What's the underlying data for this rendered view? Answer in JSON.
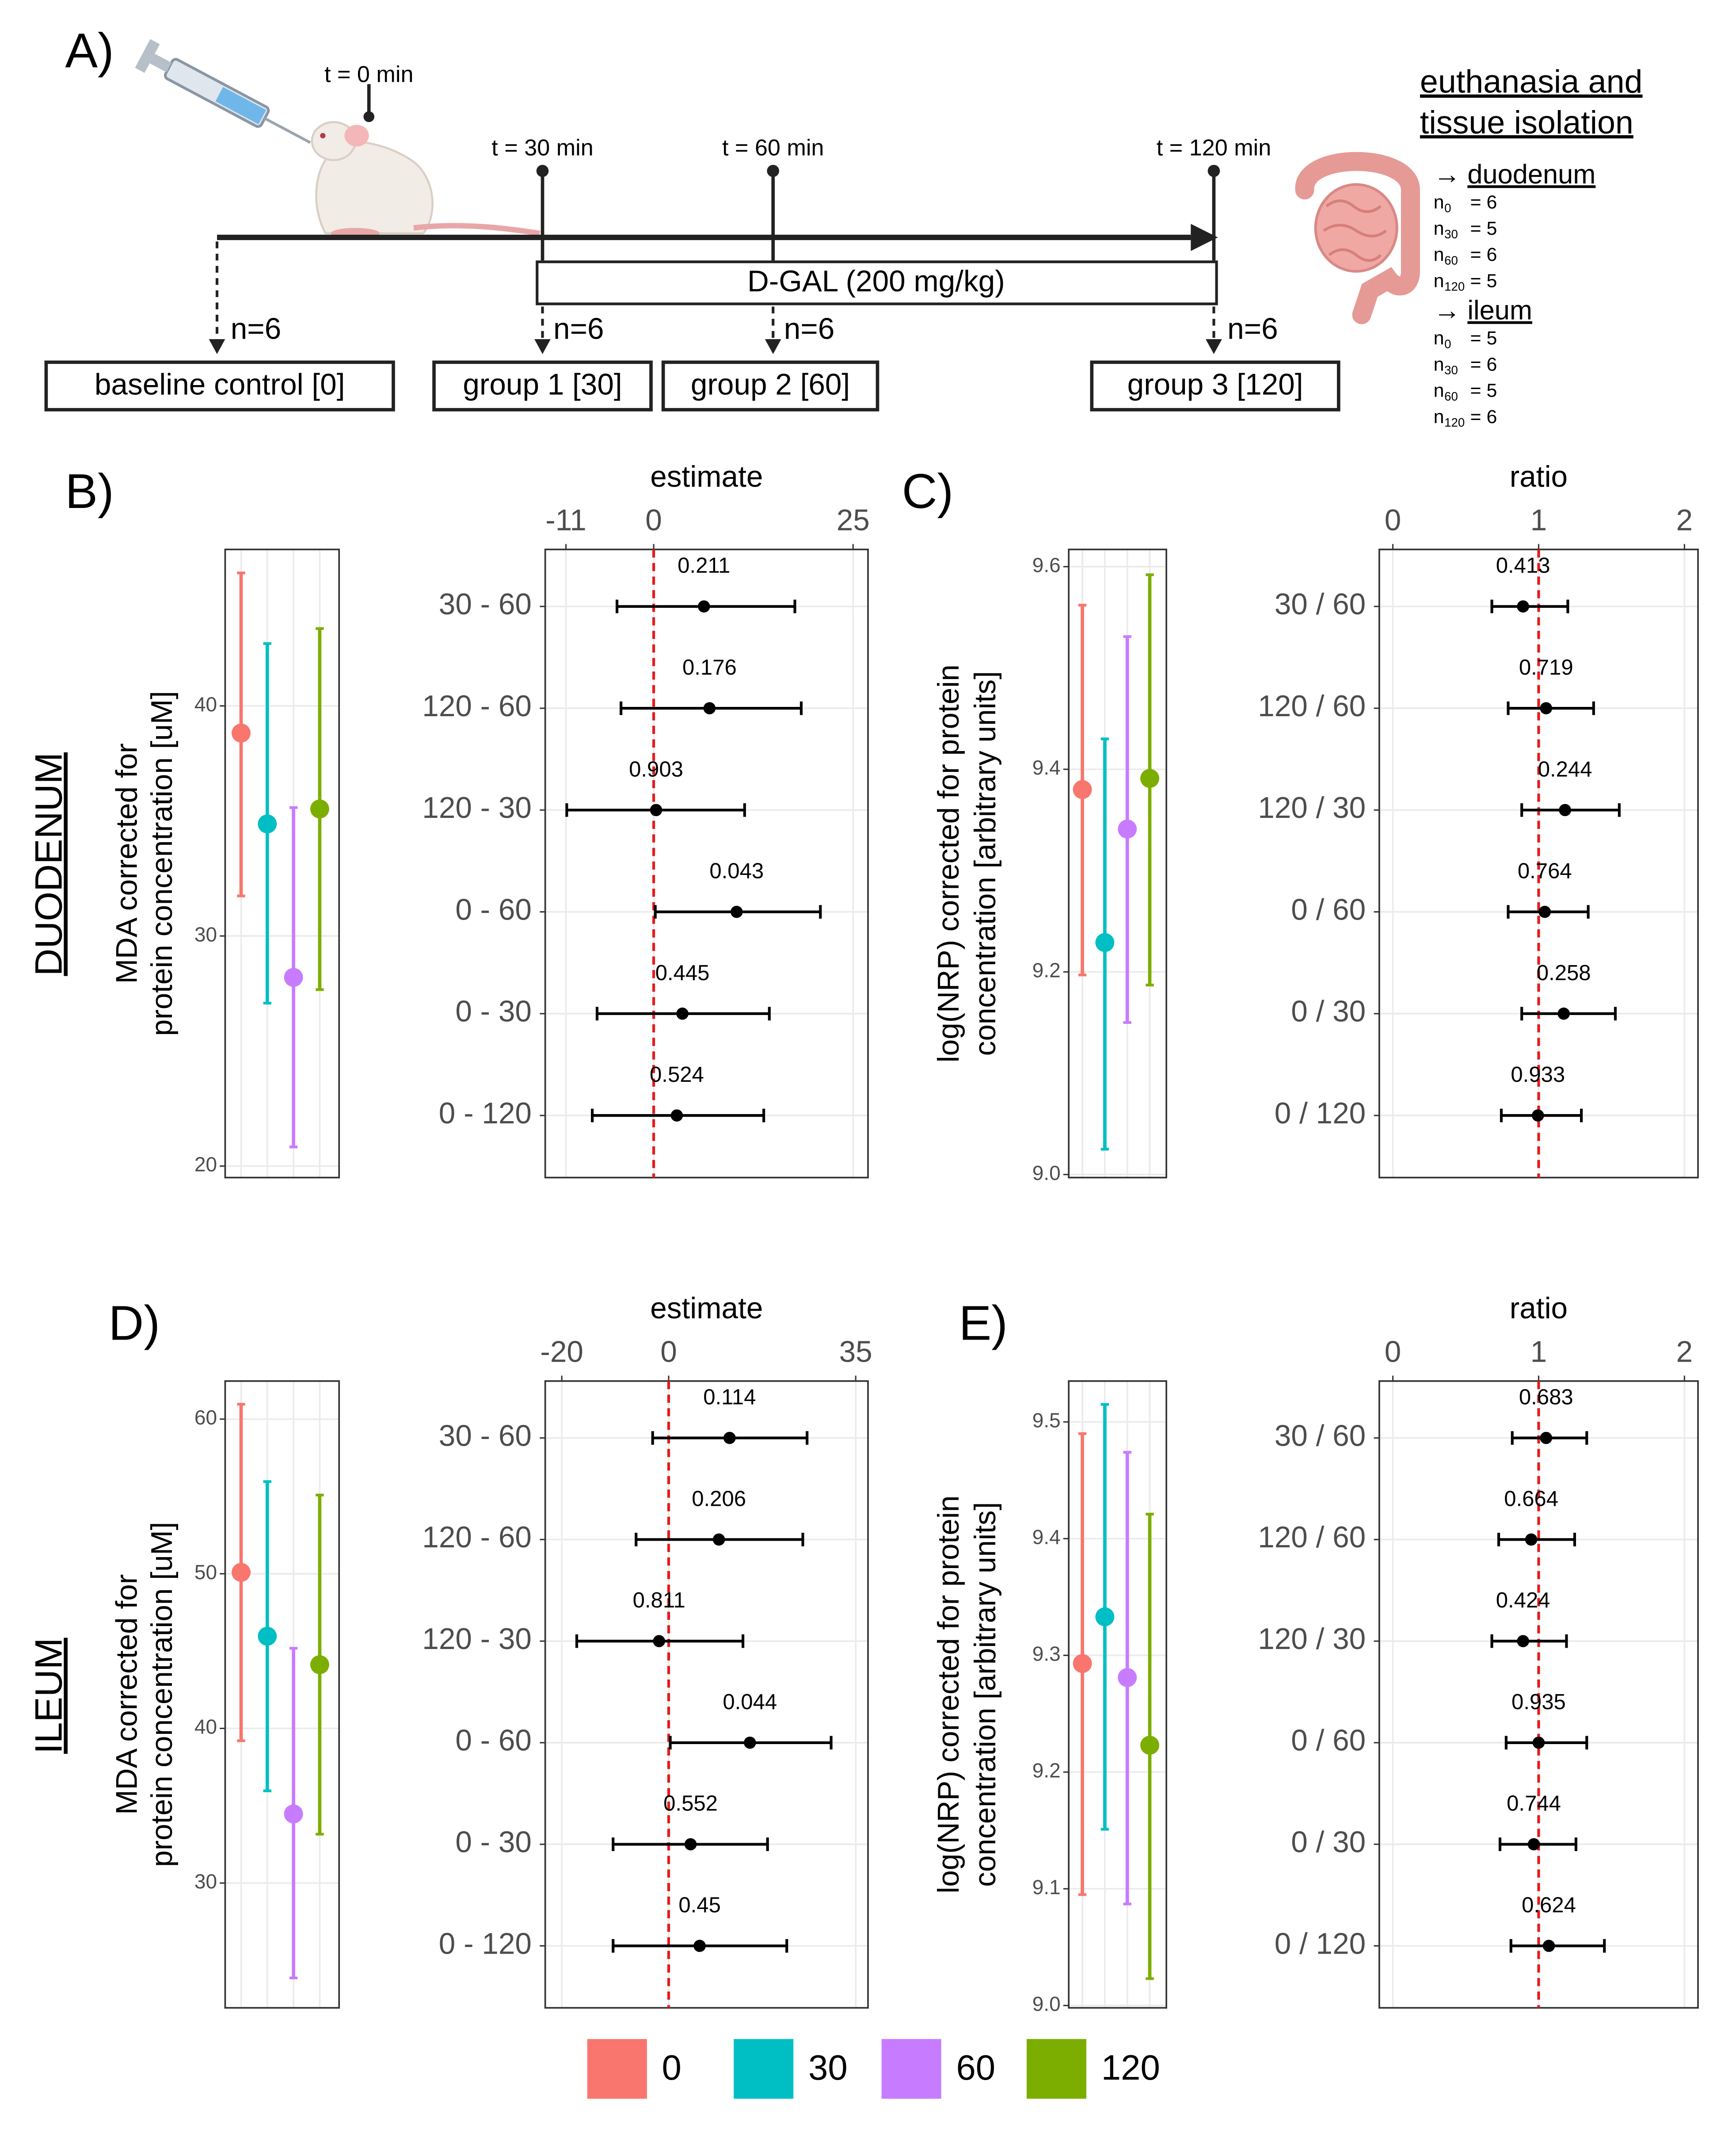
{
  "panel_labels": {
    "a": "A)",
    "b": "B)",
    "c": "C)",
    "d": "D)",
    "e": "E)"
  },
  "timeline": {
    "times": [
      "t = 0 min",
      "t = 30 min",
      "t = 60 min",
      "t = 120 min"
    ],
    "treatment": "D-GAL (200 mg/kg)",
    "group_n": [
      "n=6",
      "n=6",
      "n=6",
      "n=6"
    ],
    "groups": [
      "baseline control [0]",
      "group 1 [30]",
      "group 2 [60]",
      "group 3 [120]"
    ]
  },
  "tissue": {
    "title": [
      "euthanasia and",
      "tissue isolation"
    ],
    "sections": [
      {
        "marker": "→",
        "name": "duodenum",
        "counts": [
          {
            "symbol": "n",
            "sub": "0",
            "value": "= 6"
          },
          {
            "symbol": "n",
            "sub": "30",
            "value": "= 5"
          },
          {
            "symbol": "n",
            "sub": "60",
            "value": "= 6"
          },
          {
            "symbol": "n",
            "sub": "120",
            "value": "= 5"
          }
        ]
      },
      {
        "marker": "→",
        "name": "ileum",
        "counts": [
          {
            "symbol": "n",
            "sub": "0",
            "value": "= 5"
          },
          {
            "symbol": "n",
            "sub": "30",
            "value": "= 6"
          },
          {
            "symbol": "n",
            "sub": "60",
            "value": "= 5"
          },
          {
            "symbol": "n",
            "sub": "120",
            "value": "= 6"
          }
        ]
      }
    ]
  },
  "row_labels": [
    "DUODENUM",
    "ILEUM"
  ],
  "legend": [
    {
      "name": "0",
      "color": "#F8766D"
    },
    {
      "name": "30",
      "color": "#00BFC4"
    },
    {
      "name": "60",
      "color": "#C77CFF"
    },
    {
      "name": "120",
      "color": "#7CAE00"
    }
  ],
  "chart_data": [
    {
      "type": "dot",
      "ylabel": [
        "MDA corrected for",
        "protein concentration [uM]"
      ],
      "ylim": [
        19.5,
        46.8
      ],
      "yticks": [
        20,
        30,
        40
      ],
      "grid": true,
      "categories": [
        null,
        null,
        null,
        null
      ],
      "colors": [
        "#F8766D",
        "#00BFC4",
        "#C77CFF",
        "#7CAE00"
      ],
      "values": [
        38.82,
        34.87,
        28.2,
        35.52
      ],
      "lower": [
        31.74,
        27.08,
        20.83,
        27.67
      ],
      "upper": [
        45.78,
        42.71,
        35.58,
        43.36
      ]
    },
    {
      "type": "forest",
      "xlabel": "estimate",
      "xlim": [
        -13.6,
        26.87
      ],
      "xticks": [
        -11,
        0,
        25
      ],
      "grid": true,
      "refline": 0,
      "color": "#000000",
      "refline_color": "#E41A1C",
      "categories": [
        "30 - 60",
        "120 - 60",
        "120 - 30",
        "0 - 60",
        "0 - 30",
        "0 - 120"
      ],
      "values": [
        6.3,
        7.0,
        0.3,
        10.4,
        3.6,
        2.9
      ],
      "lower": [
        -4.6,
        -4.1,
        -10.9,
        0.2,
        -7.1,
        -7.7
      ],
      "upper": [
        17.7,
        18.5,
        11.4,
        20.9,
        14.5,
        13.8
      ],
      "pvalues": [
        0.211,
        0.176,
        0.903,
        0.043,
        0.445,
        0.524
      ]
    },
    {
      "type": "dot",
      "ylabel": [
        "log(NRP) corrected for protein",
        "concentration [arbitrary units]"
      ],
      "ylim": [
        8.997,
        9.617
      ],
      "yticks": [
        {
          "value": 9,
          "label": "9.0"
        },
        {
          "value": 9.2,
          "label": "9.2"
        },
        {
          "value": 9.4,
          "label": "9.4"
        },
        {
          "value": 9.6,
          "label": "9.6"
        }
      ],
      "grid": true,
      "categories": [
        null,
        null,
        null,
        null
      ],
      "colors": [
        "#F8766D",
        "#00BFC4",
        "#C77CFF",
        "#7CAE00"
      ],
      "values": [
        9.38,
        9.229,
        9.341,
        9.391
      ],
      "lower": [
        9.197,
        9.025,
        9.15,
        9.187
      ],
      "upper": [
        9.562,
        9.43,
        9.531,
        9.592
      ]
    },
    {
      "type": "forest",
      "xlabel": "ratio",
      "xlim": [
        -0.093,
        2.093
      ],
      "xticks": [
        0,
        1,
        2
      ],
      "grid": true,
      "refline": 1,
      "color": "#000000",
      "refline_color": "#E41A1C",
      "categories": [
        "30 / 60",
        "120 / 60",
        "120 / 30",
        "0 / 60",
        "0 / 30",
        "0 / 120"
      ],
      "values": [
        0.893,
        1.051,
        1.181,
        1.042,
        1.172,
        0.995
      ],
      "lower": [
        0.679,
        0.791,
        0.884,
        0.791,
        0.884,
        0.744
      ],
      "upper": [
        1.2,
        1.377,
        1.553,
        1.34,
        1.526,
        1.293
      ],
      "pvalues": [
        0.413,
        0.719,
        0.244,
        0.764,
        0.258,
        0.933
      ]
    },
    {
      "type": "dot",
      "ylabel": [
        "MDA corrected for",
        "protein concentration [uM]"
      ],
      "ylim": [
        21.93,
        62.46
      ],
      "yticks": [
        30,
        40,
        50,
        60
      ],
      "grid": true,
      "categories": [
        null,
        null,
        null,
        null
      ],
      "colors": [
        "#F8766D",
        "#00BFC4",
        "#C77CFF",
        "#7CAE00"
      ],
      "values": [
        50.09,
        45.96,
        34.47,
        44.12
      ],
      "lower": [
        39.2,
        35.96,
        23.86,
        33.16
      ],
      "upper": [
        60.96,
        55.96,
        45.18,
        55.09
      ]
    },
    {
      "type": "forest",
      "xlabel": "estimate",
      "xlim": [
        -23.1,
        37.3
      ],
      "xticks": [
        -20,
        0,
        35
      ],
      "grid": true,
      "refline": 0,
      "color": "#000000",
      "refline_color": "#E41A1C",
      "categories": [
        "30 - 60",
        "120 - 60",
        "120 - 30",
        "0 - 60",
        "0 - 30",
        "0 - 120"
      ],
      "values": [
        11.4,
        9.4,
        -1.8,
        15.2,
        4.1,
        5.8
      ],
      "lower": [
        -3.0,
        -6.1,
        -17.2,
        0.3,
        -10.4,
        -10.4
      ],
      "upper": [
        25.9,
        25.1,
        13.9,
        30.4,
        18.5,
        22.1
      ],
      "pvalues": [
        0.114,
        0.206,
        0.811,
        0.044,
        0.552,
        0.45
      ]
    },
    {
      "type": "dot",
      "ylabel": [
        "log(NRP) corrected for protein",
        "concentration [arbitrary units]"
      ],
      "ylim": [
        8.998,
        9.535
      ],
      "yticks": [
        {
          "value": 9,
          "label": "9.0"
        },
        9.1,
        9.2,
        9.3,
        9.4,
        9.5
      ],
      "grid": true,
      "categories": [
        null,
        null,
        null,
        null
      ],
      "colors": [
        "#F8766D",
        "#00BFC4",
        "#C77CFF",
        "#7CAE00"
      ],
      "values": [
        9.293,
        9.333,
        9.281,
        9.223
      ],
      "lower": [
        9.095,
        9.151,
        9.087,
        9.023
      ],
      "upper": [
        9.49,
        9.515,
        9.474,
        9.421
      ]
    },
    {
      "type": "forest",
      "xlabel": "ratio",
      "xlim": [
        -0.093,
        2.093
      ],
      "xticks": [
        0,
        1,
        2
      ],
      "grid": true,
      "refline": 1,
      "color": "#000000",
      "refline_color": "#E41A1C",
      "categories": [
        "30 / 60",
        "120 / 60",
        "120 / 30",
        "0 / 60",
        "0 / 30",
        "0 / 120"
      ],
      "values": [
        1.051,
        0.949,
        0.893,
        1.0,
        0.967,
        1.07
      ],
      "lower": [
        0.819,
        0.726,
        0.679,
        0.777,
        0.735,
        0.81
      ],
      "upper": [
        1.33,
        1.247,
        1.191,
        1.33,
        1.256,
        1.451
      ],
      "pvalues": [
        0.683,
        0.664,
        0.424,
        0.935,
        0.744,
        0.624
      ]
    }
  ]
}
